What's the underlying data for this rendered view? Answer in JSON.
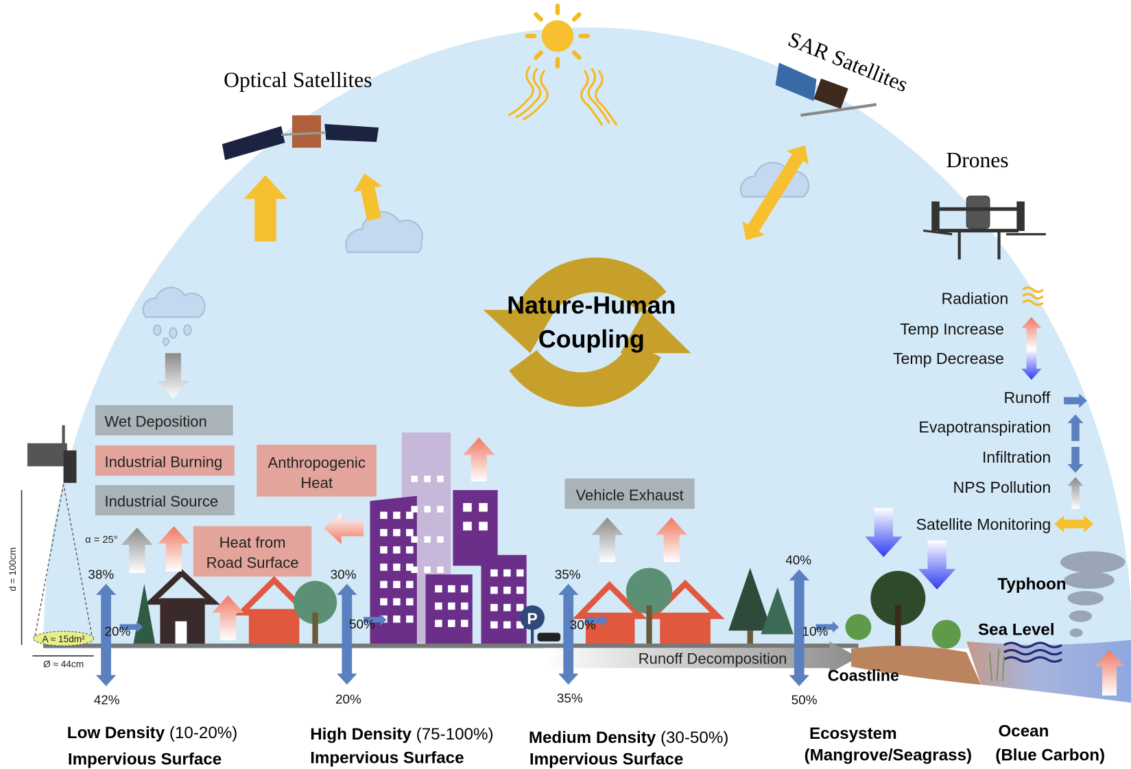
{
  "platforms": {
    "optical": "Optical Satellites",
    "sar": "SAR Satellites",
    "drones": "Drones"
  },
  "center": [
    "Nature-Human",
    "Coupling"
  ],
  "legend": [
    "Radiation",
    "Temp Increase",
    "Temp Decrease",
    "Runoff",
    "Evapotranspiration",
    "Infiltration",
    "NPS Pollution",
    "Satellite Monitoring"
  ],
  "processes": {
    "wet_deposition": "Wet Deposition",
    "industrial_burning": "Industrial Burning",
    "industrial_source": "Industrial Source",
    "anthropogenic_heat": [
      "Anthropogenic",
      "Heat"
    ],
    "road_heat": [
      "Heat from",
      "Road Surface"
    ],
    "vehicle_exhaust": "Vehicle Exhaust",
    "runoff_decomposition": "Runoff Decomposition"
  },
  "sensor": {
    "angle": "α = 25°",
    "height": "d = 100cm",
    "area": "A ≈ 15dm²",
    "diameter": "Ø ≈ 44cm"
  },
  "zones": [
    {
      "title": "Low Density",
      "range": "(10-20%)",
      "subtitle": "Impervious Surface",
      "evapotranspiration": "38%",
      "runoff": "20%",
      "infiltration": "42%"
    },
    {
      "title": "High Density",
      "range": "(75-100%)",
      "subtitle": "Impervious Surface",
      "evapotranspiration": "30%",
      "runoff": "50%",
      "infiltration": "20%"
    },
    {
      "title": "Medium Density",
      "range": "(30-50%)",
      "subtitle": "Impervious Surface",
      "evapotranspiration": "35%",
      "runoff": "30%",
      "infiltration": "35%"
    },
    {
      "title": "Ecosystem",
      "subtitle": "(Mangrove/Seagrass)",
      "evapotranspiration": "40%",
      "runoff": "10%",
      "infiltration": "50%"
    },
    {
      "title": "Ocean",
      "subtitle": "(Blue Carbon)"
    }
  ],
  "labels": {
    "coastline": "Coastline",
    "typhoon": "Typhoon",
    "sea_level": "Sea Level"
  }
}
